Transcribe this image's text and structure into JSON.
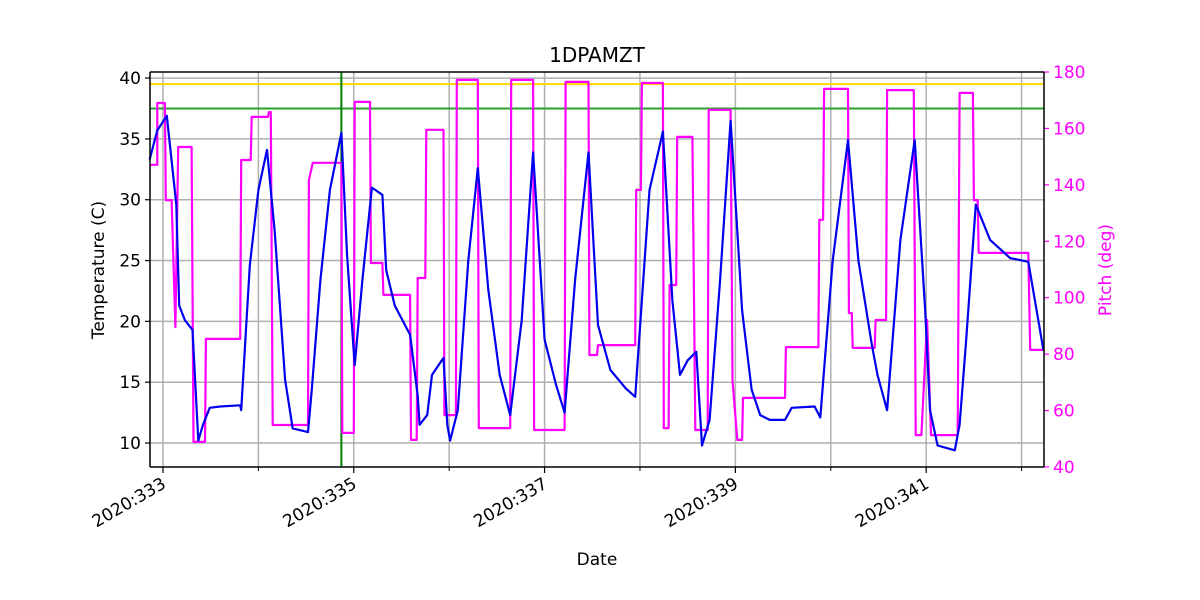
{
  "chart_data": {
    "type": "line",
    "title": "1DPAMZT",
    "x_label": "Date",
    "y_label": "Temperature (C)",
    "y2_label": "Pitch (deg)",
    "y2_color": "#ff00ff",
    "grid": true,
    "xlim": [
      332.864,
      342.235
    ],
    "xticks": [
      {
        "value": 333,
        "label": "2020:333"
      },
      {
        "value": 335,
        "label": "2020:335"
      },
      {
        "value": 337,
        "label": "2020:337"
      },
      {
        "value": 339,
        "label": "2020:339"
      },
      {
        "value": 341,
        "label": "2020:341"
      }
    ],
    "xminor_ticks": [
      334,
      336,
      338,
      340,
      342
    ],
    "ylim": [
      8.03,
      40.5
    ],
    "yticks": [
      10,
      15,
      20,
      25,
      30,
      35,
      40
    ],
    "y2lim": [
      40,
      180
    ],
    "y2ticks": [
      40,
      60,
      80,
      100,
      120,
      140,
      160,
      180
    ],
    "hlines": [
      {
        "value": 39.5,
        "color": "#ffd700"
      },
      {
        "value": 37.5,
        "color": "#2ca02c"
      }
    ],
    "vlines": [
      {
        "value": 334.87,
        "color": "#008000"
      }
    ],
    "series": [
      {
        "name": "1DPAMZT",
        "color": "#ff00ff",
        "axis": "y2",
        "x": [
          332.86,
          332.94,
          332.94,
          333.02,
          333.03,
          333.09,
          333.13,
          333.16,
          333.3,
          333.32,
          333.44,
          333.45,
          333.81,
          333.82,
          333.92,
          333.93,
          334.1,
          334.11,
          334.13,
          334.15,
          334.52,
          334.53,
          334.57,
          334.87,
          334.88,
          335.0,
          335.01,
          335.17,
          335.18,
          335.3,
          335.31,
          335.59,
          335.6,
          335.66,
          335.67,
          335.75,
          335.76,
          335.94,
          335.95,
          336.07,
          336.08,
          336.3,
          336.31,
          336.64,
          336.65,
          336.88,
          336.89,
          337.21,
          337.22,
          337.46,
          337.47,
          337.55,
          337.56,
          337.95,
          337.96,
          338.01,
          338.02,
          338.24,
          338.25,
          338.3,
          338.31,
          338.38,
          338.39,
          338.55,
          338.58,
          338.71,
          338.72,
          338.95,
          338.97,
          339.02,
          339.07,
          339.08,
          339.52,
          339.53,
          339.87,
          339.88,
          339.92,
          339.93,
          340.18,
          340.19,
          340.22,
          340.23,
          340.46,
          340.47,
          340.58,
          340.59,
          340.87,
          340.89,
          340.95,
          341.01,
          341.05,
          341.33,
          341.35,
          341.49,
          341.5,
          341.54,
          341.55,
          342.07,
          342.09,
          342.23
        ],
        "values": [
          147.1,
          147.1,
          169.0,
          169.0,
          134.6,
          134.6,
          89.6,
          153.4,
          153.4,
          48.9,
          48.9,
          85.4,
          85.4,
          148.8,
          148.8,
          164.1,
          164.1,
          165.8,
          165.8,
          54.9,
          54.9,
          141.7,
          147.8,
          147.8,
          52.1,
          52.1,
          169.4,
          169.4,
          112.3,
          112.3,
          101.0,
          101.0,
          49.6,
          49.6,
          107.0,
          107.0,
          159.5,
          159.5,
          58.4,
          58.4,
          177.2,
          177.2,
          53.8,
          53.8,
          177.2,
          177.2,
          53.1,
          53.1,
          176.5,
          176.5,
          79.7,
          79.7,
          83.2,
          83.2,
          138.2,
          138.2,
          176.1,
          176.1,
          53.8,
          53.8,
          104.5,
          104.5,
          157.0,
          157.0,
          53.1,
          53.1,
          166.6,
          166.6,
          70.8,
          49.6,
          49.6,
          64.5,
          64.5,
          82.5,
          82.5,
          127.6,
          127.6,
          174.0,
          174.0,
          94.6,
          94.6,
          82.2,
          82.2,
          92.1,
          92.1,
          173.6,
          173.6,
          51.3,
          51.3,
          92.1,
          51.3,
          51.3,
          172.6,
          172.6,
          134.6,
          134.6,
          115.9,
          115.9,
          81.5,
          81.5
        ]
      },
      {
        "name": "Temperature",
        "color": "#0000ee",
        "x": [
          332.86,
          332.94,
          333.04,
          333.14,
          333.17,
          333.23,
          333.31,
          333.37,
          333.42,
          333.49,
          333.6,
          333.81,
          333.82,
          333.91,
          334.0,
          334.09,
          334.17,
          334.28,
          334.36,
          334.52,
          334.56,
          334.65,
          334.75,
          334.87,
          334.93,
          335.01,
          335.09,
          335.19,
          335.3,
          335.34,
          335.43,
          335.59,
          335.67,
          335.69,
          335.77,
          335.82,
          335.94,
          335.98,
          336.01,
          336.09,
          336.2,
          336.3,
          336.41,
          336.53,
          336.64,
          336.76,
          336.88,
          337.0,
          337.12,
          337.21,
          337.32,
          337.46,
          337.56,
          337.69,
          337.85,
          337.95,
          338.1,
          338.24,
          338.34,
          338.42,
          338.5,
          338.59,
          338.65,
          338.73,
          338.84,
          338.95,
          339.07,
          339.17,
          339.26,
          339.36,
          339.52,
          339.59,
          339.83,
          339.89,
          340.02,
          340.18,
          340.29,
          340.43,
          340.49,
          340.59,
          340.73,
          340.88,
          340.99,
          341.04,
          341.12,
          341.3,
          341.35,
          341.42,
          341.52,
          341.67,
          341.88,
          342.07,
          342.23
        ],
        "values": [
          33.3,
          35.7,
          36.9,
          29.6,
          21.3,
          20.1,
          19.3,
          10.2,
          11.5,
          12.9,
          13.0,
          13.1,
          12.7,
          24.6,
          30.8,
          34.1,
          27.5,
          15.2,
          11.2,
          10.9,
          14.4,
          23.4,
          30.8,
          35.5,
          25.4,
          16.4,
          23.4,
          31.0,
          30.4,
          24.2,
          21.3,
          18.9,
          13.9,
          11.5,
          12.3,
          15.6,
          17.0,
          11.5,
          10.2,
          12.7,
          25.0,
          32.6,
          22.6,
          15.6,
          12.3,
          20.1,
          33.9,
          18.5,
          14.8,
          12.5,
          23.4,
          33.9,
          19.7,
          16.0,
          14.5,
          13.8,
          30.8,
          35.6,
          21.7,
          15.6,
          16.8,
          17.5,
          9.8,
          11.9,
          23.4,
          36.5,
          20.9,
          14.4,
          12.3,
          11.9,
          11.9,
          12.9,
          13.0,
          12.1,
          25.0,
          34.9,
          25.0,
          18.1,
          15.6,
          12.7,
          26.7,
          34.9,
          20.9,
          12.7,
          9.8,
          9.4,
          11.5,
          18.5,
          29.6,
          26.7,
          25.2,
          24.9,
          17.6
        ]
      }
    ]
  }
}
